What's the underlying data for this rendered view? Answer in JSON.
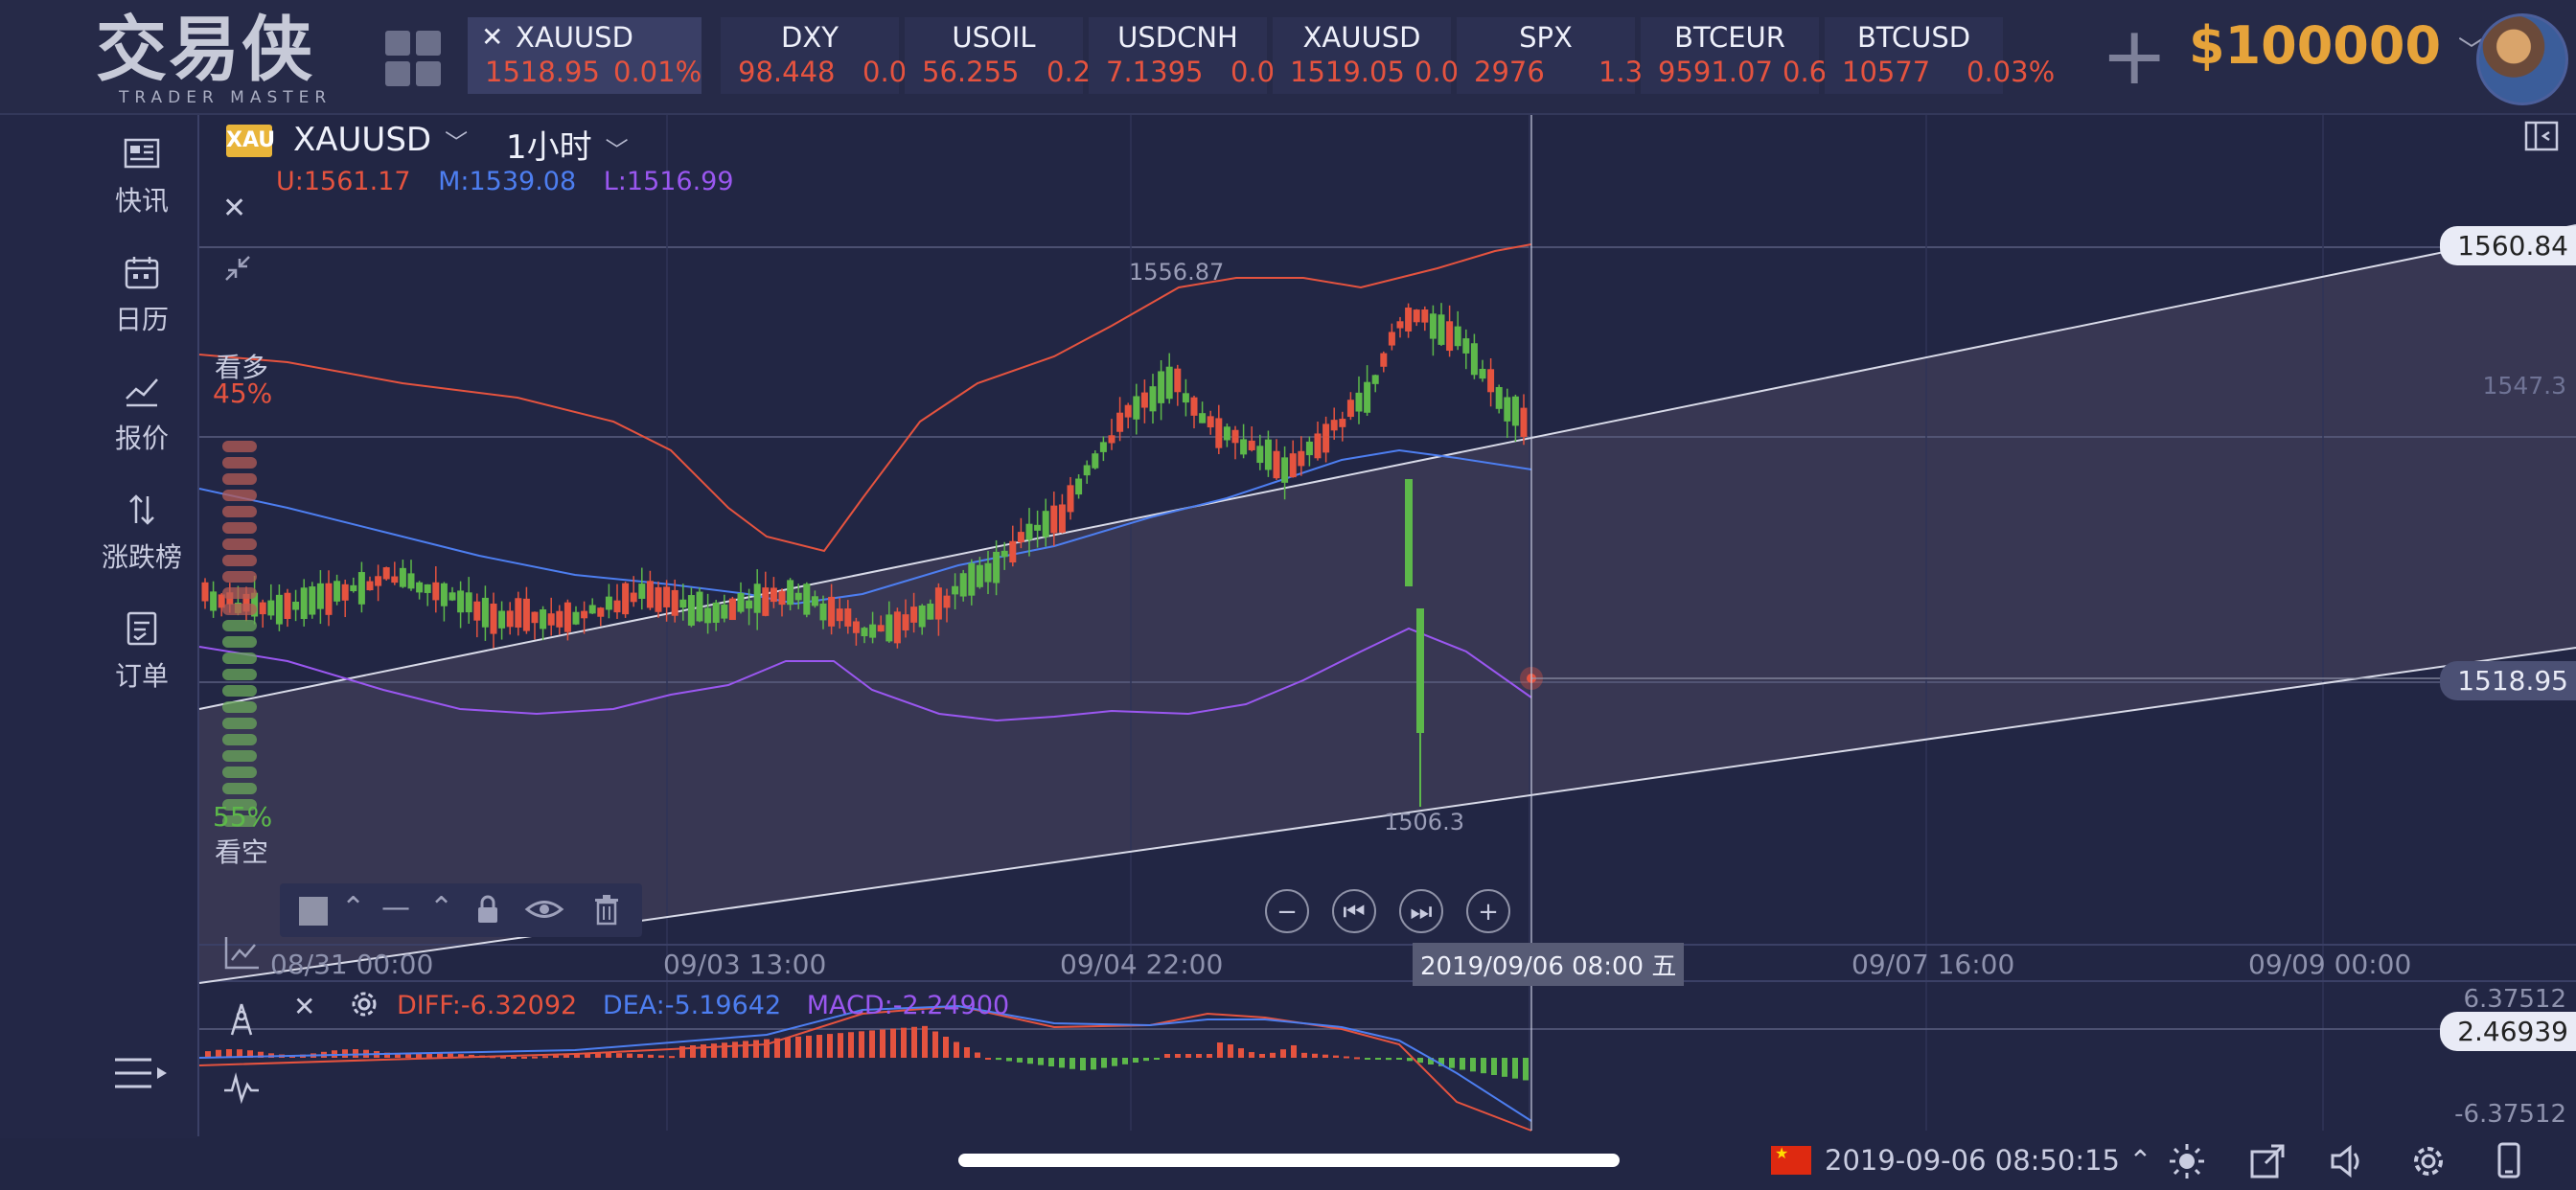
{
  "app": {
    "logo_cn": "交易侠",
    "logo_en": "TRADER MASTER"
  },
  "tickers": [
    {
      "symbol": "XAUUSD",
      "price": "1518.95",
      "change": "0.01%",
      "active": true
    },
    {
      "symbol": "DXY",
      "price": "98.448",
      "change": "0.0"
    },
    {
      "symbol": "USOIL",
      "price": "56.255",
      "change": "0.2"
    },
    {
      "symbol": "USDCNH",
      "price": "7.1395",
      "change": "0.0"
    },
    {
      "symbol": "XAUUSD",
      "price": "1519.05",
      "change": "0.0"
    },
    {
      "symbol": "SPX",
      "price": "2976",
      "change": "1.3"
    },
    {
      "symbol": "BTCEUR",
      "price": "9591.07",
      "change": "0.6"
    },
    {
      "symbol": "BTCUSD",
      "price": "10577",
      "change": "0.03%"
    }
  ],
  "account": {
    "balance": "$100000"
  },
  "sidebar": {
    "items": [
      {
        "label": "快讯",
        "icon": "news-icon"
      },
      {
        "label": "日历",
        "icon": "calendar-icon"
      },
      {
        "label": "报价",
        "icon": "quote-icon"
      },
      {
        "label": "涨跌榜",
        "icon": "ranking-icon"
      },
      {
        "label": "订单",
        "icon": "order-icon"
      }
    ]
  },
  "chart": {
    "badge": "XAU",
    "symbol": "XAUUSD",
    "period": "1小时",
    "boll": {
      "upper": "U:1561.17",
      "middle": "M:1539.08",
      "lower": "L:1516.99"
    },
    "sentiment": {
      "bull_label": "看多",
      "bull_pct": "45%",
      "bear_label": "看空",
      "bear_pct": "55%"
    },
    "price_labels": {
      "top": "1560.84",
      "mid": "1547.3",
      "current": "1518.95"
    },
    "high_label": "1556.87",
    "low_label": "1506.3",
    "time_labels": [
      "08/31 00:00",
      "09/03 13:00",
      "09/04 22:00",
      "09/07 16:00",
      "09/09 00:00"
    ],
    "cursor_time": "2019/09/06 08:00 五",
    "colors": {
      "up": "#e5533f",
      "down": "#5db84a",
      "boll_u": "#e5533f",
      "boll_m": "#4d7ef0",
      "boll_l": "#9a57f0"
    }
  },
  "macd": {
    "diff": "DIFF:-6.32092",
    "dea": "DEA:-5.19642",
    "macd": "MACD:-2.24900",
    "axis_top": "6.37512",
    "axis_bottom": "-6.37512",
    "current": "2.46939"
  },
  "status": {
    "datetime": "2019-09-06 08:50:15"
  }
}
